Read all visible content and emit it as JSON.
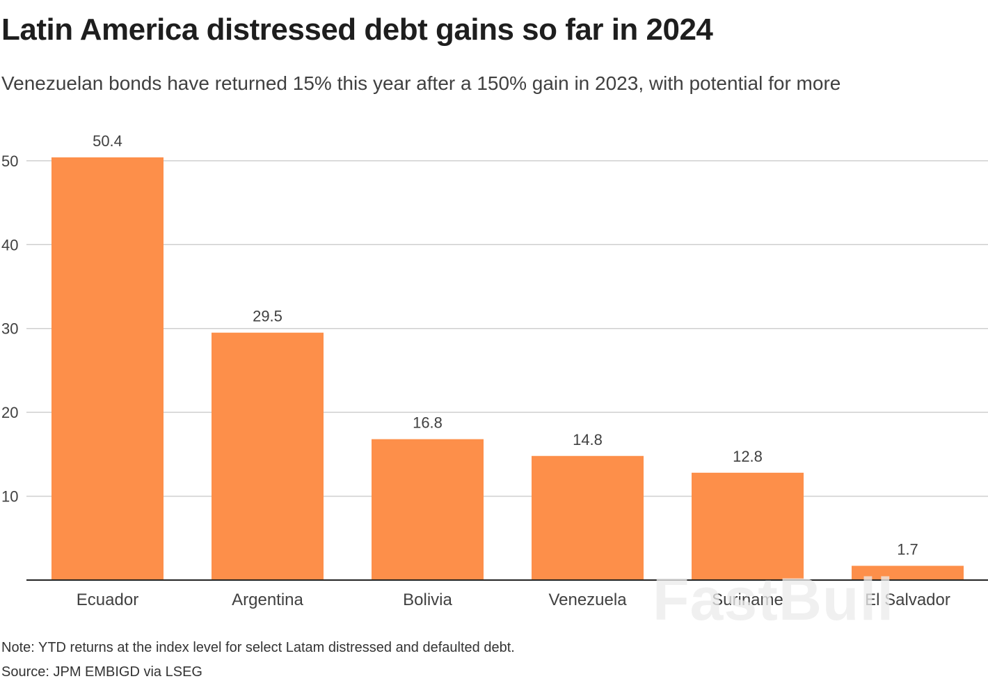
{
  "title": "Latin America distressed debt gains so far in 2024",
  "subtitle": "Venezuelan bonds have returned 15% this year after a 150% gain in 2023, with potential for more",
  "note": "Note: YTD returns at the index level for select Latam distressed and defaulted debt.",
  "source": "Source: JPM EMBIGD via LSEG",
  "watermark": "FastBull",
  "colors": {
    "bar": "#fd8f4a",
    "grid": "#cfcfcf",
    "axis": "#222222",
    "text": "#404040"
  },
  "chart_data": {
    "type": "bar",
    "title": "Latin America distressed debt gains so far in 2024",
    "xlabel": "",
    "ylabel": "",
    "categories": [
      "Ecuador",
      "Argentina",
      "Bolivia",
      "Venezuela",
      "Suriname",
      "El Salvador"
    ],
    "values": [
      50.4,
      29.5,
      16.8,
      14.8,
      12.8,
      1.7
    ],
    "value_labels": [
      "50.4",
      "29.5",
      "16.8",
      "14.8",
      "12.8",
      "1.7"
    ],
    "yticks": [
      10,
      20,
      30,
      40,
      50
    ],
    "ylim": [
      0,
      50.4
    ],
    "grid": true
  }
}
